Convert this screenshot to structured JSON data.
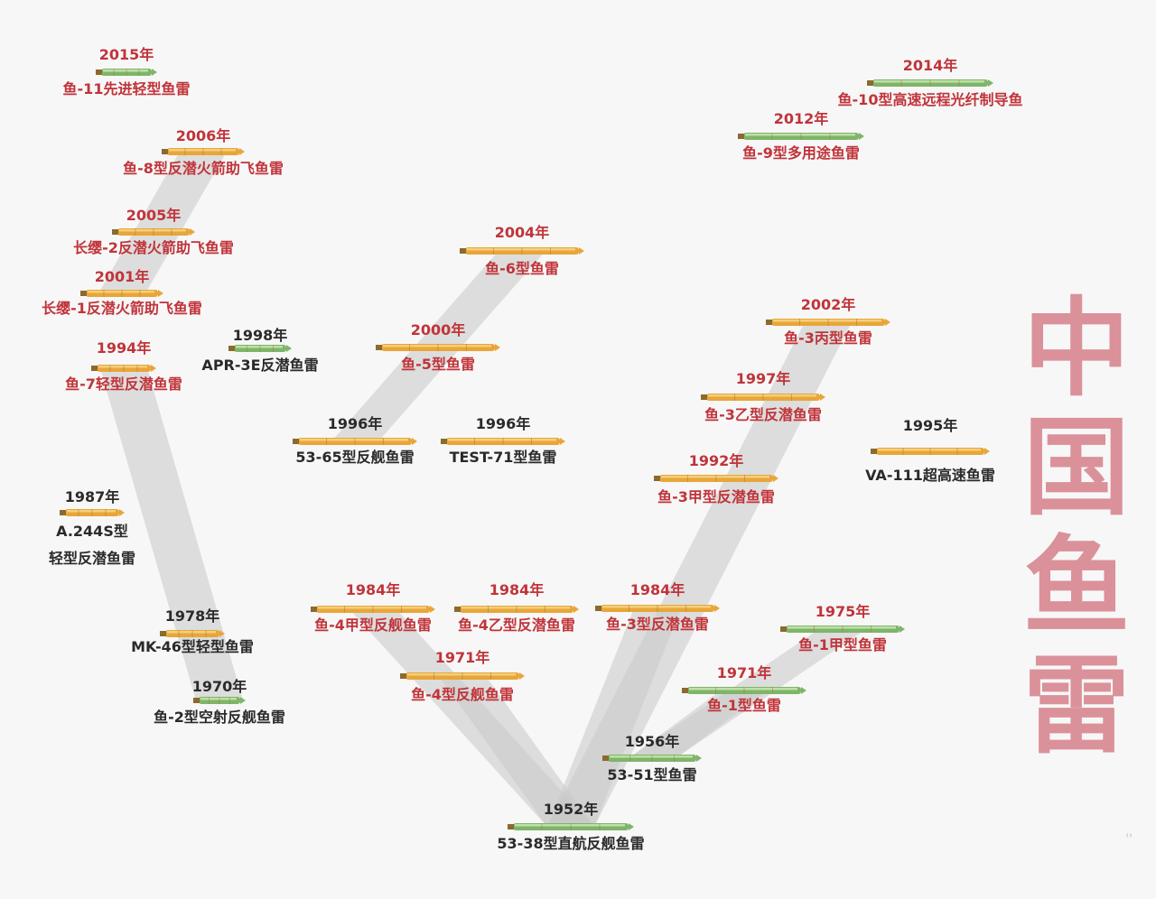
{
  "title": "中国鱼雷",
  "title_chars": [
    "中",
    "国",
    "鱼",
    "雷"
  ],
  "colors": {
    "gold": "#e8a63a",
    "gold_light": "#f4cf7a",
    "green": "#7fb56a",
    "green_light": "#bfe0a8",
    "red_text": "#c0343a",
    "dark_text": "#2a2a2a",
    "band": "#c9c9c9",
    "title": "#d98c96"
  },
  "nodes": [
    {
      "id": "yu11",
      "year": "2015年",
      "name": "鱼-11先进轻型鱼雷",
      "color": "green",
      "text": "red"
    },
    {
      "id": "yu8",
      "year": "2006年",
      "name": "鱼-8型反潜火箭助飞鱼雷",
      "color": "gold",
      "text": "red"
    },
    {
      "id": "cz2",
      "year": "2005年",
      "name": "长缨-2反潜火箭助飞鱼雷",
      "color": "gold",
      "text": "red"
    },
    {
      "id": "cz1",
      "year": "2001年",
      "name": "长缨-1反潜火箭助飞鱼雷",
      "color": "gold",
      "text": "red"
    },
    {
      "id": "apr3e",
      "year": "1998年",
      "name": "APR-3E反潜鱼雷",
      "color": "green",
      "text": "dark"
    },
    {
      "id": "yu7",
      "year": "1994年",
      "name": "鱼-7轻型反潜鱼雷",
      "color": "gold",
      "text": "red"
    },
    {
      "id": "a244",
      "year": "1987年",
      "name": "A.244S型",
      "name2": "轻型反潜鱼雷",
      "color": "gold",
      "text": "dark"
    },
    {
      "id": "mk46",
      "year": "1978年",
      "name": "MK-46型轻型鱼雷",
      "color": "gold",
      "text": "dark"
    },
    {
      "id": "yu2",
      "year": "1970年",
      "name": "鱼-2型空射反舰鱼雷",
      "color": "green",
      "text": "dark"
    },
    {
      "id": "yu6",
      "year": "2004年",
      "name": "鱼-6型鱼雷",
      "color": "gold",
      "text": "red"
    },
    {
      "id": "yu5",
      "year": "2000年",
      "name": "鱼-5型鱼雷",
      "color": "gold",
      "text": "red"
    },
    {
      "id": "s5365",
      "year": "1996年",
      "name": "53-65型反舰鱼雷",
      "color": "gold",
      "text": "dark"
    },
    {
      "id": "test71",
      "year": "1996年",
      "name": "TEST-71型鱼雷",
      "color": "gold",
      "text": "dark"
    },
    {
      "id": "yu4jia",
      "year": "1984年",
      "name": "鱼-4甲型反舰鱼雷",
      "color": "gold",
      "text": "red"
    },
    {
      "id": "yu4yi",
      "year": "1984年",
      "name": "鱼-4乙型反潜鱼雷",
      "color": "gold",
      "text": "red"
    },
    {
      "id": "yu4",
      "year": "1971年",
      "name": "鱼-4型反舰鱼雷",
      "color": "gold",
      "text": "red"
    },
    {
      "id": "s5338",
      "year": "1952年",
      "name": "53-38型直航反舰鱼雷",
      "color": "green",
      "text": "dark"
    },
    {
      "id": "yu3bing",
      "year": "2002年",
      "name": "鱼-3丙型鱼雷",
      "color": "gold",
      "text": "red"
    },
    {
      "id": "yu3yi",
      "year": "1997年",
      "name": "鱼-3乙型反潜鱼雷",
      "color": "gold",
      "text": "red"
    },
    {
      "id": "yu3jia",
      "year": "1992年",
      "name": "鱼-3甲型反潜鱼雷",
      "color": "gold",
      "text": "red"
    },
    {
      "id": "yu3",
      "year": "1984年",
      "name": "鱼-3型反潜鱼雷",
      "color": "gold",
      "text": "red"
    },
    {
      "id": "yu1jia",
      "year": "1975年",
      "name": "鱼-1甲型鱼雷",
      "color": "green",
      "text": "red"
    },
    {
      "id": "yu1",
      "year": "1971年",
      "name": "鱼-1型鱼雷",
      "color": "green",
      "text": "red"
    },
    {
      "id": "s5351",
      "year": "1956年",
      "name": "53-51型鱼雷",
      "color": "green",
      "text": "dark"
    },
    {
      "id": "yu10",
      "year": "2014年",
      "name": "鱼-10型高速远程光纤制导鱼",
      "color": "green",
      "text": "red"
    },
    {
      "id": "yu9",
      "year": "2012年",
      "name": "鱼-9型多用途鱼雷",
      "color": "green",
      "text": "red"
    },
    {
      "id": "va111",
      "year": "1995年",
      "name": "VA-111超高速鱼雷",
      "color": "gold",
      "text": "dark"
    }
  ],
  "edges": [
    [
      "yu2",
      "yu7"
    ],
    [
      "cz1",
      "yu8"
    ],
    [
      "s5365",
      "yu6"
    ],
    [
      "yu4jia",
      "s5338"
    ],
    [
      "yu4",
      "s5338"
    ],
    [
      "s5338",
      "yu3"
    ],
    [
      "s5338",
      "yu3bing"
    ],
    [
      "s5351",
      "yu1"
    ],
    [
      "s5351",
      "yu1jia"
    ]
  ]
}
